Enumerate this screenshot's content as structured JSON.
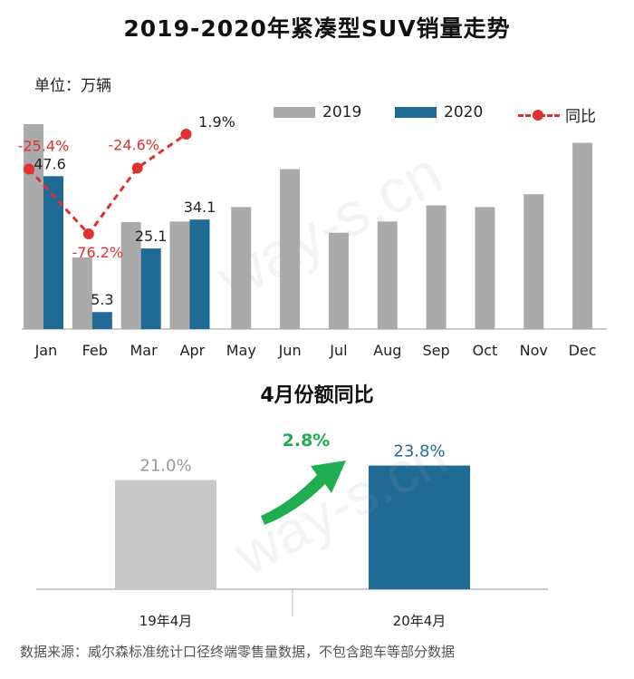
{
  "colors": {
    "y2019": "#aaaaaa",
    "y2020": "#1f6b96",
    "yoy": "#e03030",
    "share2019": "#c8c8c8",
    "share2020": "#1f6b96",
    "arrow": "#1fae4f"
  },
  "chart_data": [
    {
      "type": "bar",
      "title": "2019-2020年紧凑型SUV销量走势",
      "unit_label": "单位：万辆",
      "categories": [
        "Jan",
        "Feb",
        "Mar",
        "Apr",
        "May",
        "Jun",
        "Jul",
        "Aug",
        "Sep",
        "Oct",
        "Nov",
        "Dec"
      ],
      "series": [
        {
          "name": "2019",
          "values": [
            63.8,
            22.3,
            33.3,
            33.5,
            38.0,
            49.8,
            30.0,
            33.5,
            38.5,
            38.0,
            42.0,
            58.0
          ]
        },
        {
          "name": "2020",
          "values": [
            47.6,
            5.3,
            25.1,
            34.1,
            null,
            null,
            null,
            null,
            null,
            null,
            null,
            null
          ]
        }
      ],
      "line_series": {
        "name": "同比",
        "values": [
          -25.4,
          -76.2,
          -24.6,
          1.9
        ],
        "labels": [
          "-25.4%",
          "-76.2%",
          "-24.6%",
          "1.9%"
        ]
      },
      "data_labels_2020": [
        "47.6",
        "5.3",
        "25.1",
        "34.1"
      ],
      "ylim": [
        0,
        70
      ],
      "legend_placement": "top-right",
      "grid": false
    },
    {
      "type": "bar",
      "title": "4月份额同比",
      "categories": [
        "19年4月",
        "20年4月"
      ],
      "values": [
        21.0,
        23.8
      ],
      "labels": [
        "21.0%",
        "23.8%"
      ],
      "change_label": "2.8%",
      "ylim": [
        0,
        30
      ]
    }
  ],
  "watermark": "way-s.cn",
  "source": "数据来源：威尔森标准统计口径终端零售量数据，不包含跑车等部分数据"
}
